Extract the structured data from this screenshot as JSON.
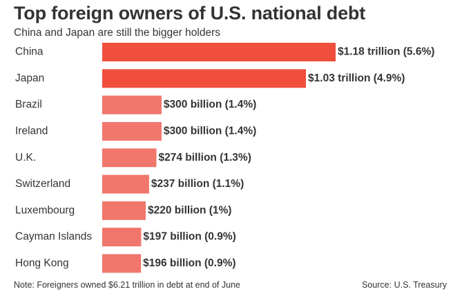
{
  "title": "Top foreign owners of U.S. national debt",
  "subtitle": "China and Japan are still the bigger holders",
  "note": "Note: Foreigners owned $6.21 trillion in debt at end of June",
  "source": "Source: U.S. Treasury",
  "colors": {
    "top_bar": "#f04f3e",
    "other_bar": "#f1766c",
    "text": "#333333"
  },
  "chart_data": {
    "type": "bar",
    "orientation": "horizontal",
    "title": "Top foreign owners of U.S. national debt",
    "subtitle": "China and Japan are still the bigger holders",
    "unit": "billion USD",
    "grid": false,
    "categories": [
      "China",
      "Japan",
      "Brazil",
      "Ireland",
      "U.K.",
      "Switzerland",
      "Luxembourg",
      "Cayman Islands",
      "Hong Kong"
    ],
    "values": [
      1180,
      1030,
      300,
      300,
      274,
      237,
      220,
      197,
      196
    ],
    "labels": [
      "$1.18 trillion (5.6%)",
      "$1.03 trillion (4.9%)",
      "$300 billion (1.4%)",
      "$300 billion (1.4%)",
      "$274 billion (1.3%)",
      "$237 billion (1.1%)",
      "$220 billion (1%)",
      "$197 billion (0.9%)",
      "$196 billion (0.9%)"
    ],
    "highlighted": [
      true,
      true,
      false,
      false,
      false,
      false,
      false,
      false,
      false
    ]
  }
}
